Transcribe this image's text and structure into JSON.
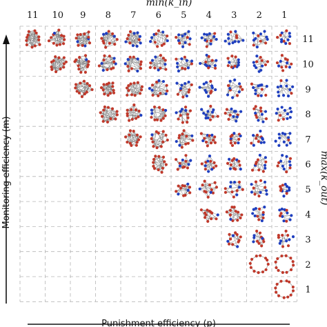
{
  "top_axis": {
    "title": "min(k_in)",
    "ticks": [
      "11",
      "10",
      "9",
      "8",
      "7",
      "6",
      "5",
      "4",
      "3",
      "2",
      "1"
    ]
  },
  "right_axis": {
    "title": "max(k_out)",
    "ticks": [
      "11",
      "10",
      "9",
      "8",
      "7",
      "6",
      "5",
      "4",
      "3",
      "2",
      "1"
    ]
  },
  "left_axis": {
    "title": "Monitoring efficiency (m)"
  },
  "bottom_axis": {
    "title": "Punishment efficiency (p)"
  },
  "colors": {
    "node_red": "#c0392b",
    "node_blue": "#1f3fbf",
    "edge": "#7a7a7a",
    "grid": "#b5b5b5",
    "axis": "#111111"
  },
  "grid": {
    "rows": 11,
    "cols": 11,
    "triangular_upper": true
  }
}
